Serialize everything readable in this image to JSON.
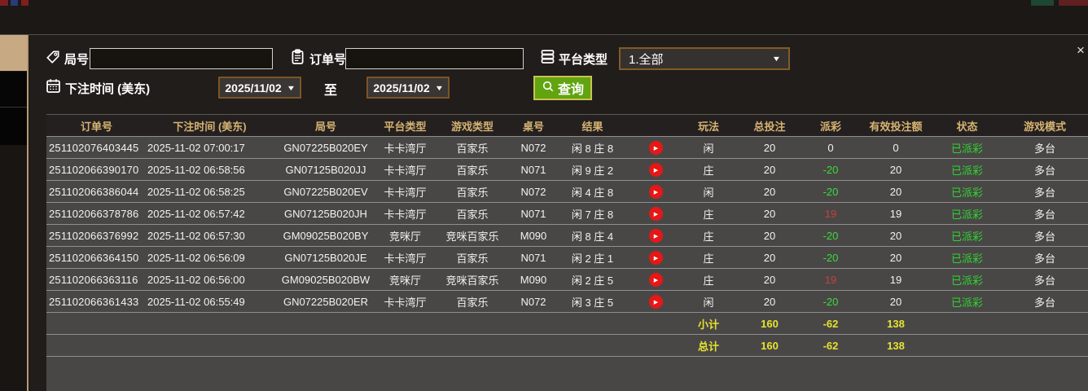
{
  "window": {
    "close_icon": "×"
  },
  "filters": {
    "round_no": {
      "label": "局号",
      "value": ""
    },
    "order_no": {
      "label": "订单号",
      "value": ""
    },
    "platform_type": {
      "label": "平台类型",
      "selected": "1.全部",
      "arrow": "▼"
    },
    "bet_time": {
      "label": "下注时间 (美东)",
      "from": "2025/11/02",
      "to_separator": "至",
      "to": "2025/11/02",
      "arrow": "▼"
    },
    "query_button": {
      "label": "查询"
    }
  },
  "table": {
    "headers": [
      "订单号",
      "下注时间 (美东)",
      "局号",
      "平台类型",
      "游戏类型",
      "桌号",
      "结果",
      "",
      "玩法",
      "总投注",
      "派彩",
      "有效投注额",
      "状态",
      "游戏模式"
    ],
    "rows": [
      {
        "order_id": "251102076403445",
        "bet_time": "2025-11-02 07:00:17",
        "round_id": "GN07225B020EY",
        "platform": "卡卡湾厅",
        "game_type": "百家乐",
        "table_no": "N072",
        "result": "闲 8 庄 8",
        "bet_on": "闲",
        "total_bet": "20",
        "payout": "0",
        "payout_class": "zero",
        "valid_bet": "0",
        "status": "已派彩",
        "mode": "多台"
      },
      {
        "order_id": "251102066390170",
        "bet_time": "2025-11-02 06:58:56",
        "round_id": "GN07125B020JJ",
        "platform": "卡卡湾厅",
        "game_type": "百家乐",
        "table_no": "N071",
        "result": "闲 9 庄 2",
        "bet_on": "庄",
        "total_bet": "20",
        "payout": "-20",
        "payout_class": "neg",
        "valid_bet": "20",
        "status": "已派彩",
        "mode": "多台"
      },
      {
        "order_id": "251102066386044",
        "bet_time": "2025-11-02 06:58:25",
        "round_id": "GN07225B020EV",
        "platform": "卡卡湾厅",
        "game_type": "百家乐",
        "table_no": "N072",
        "result": "闲 4 庄 8",
        "bet_on": "闲",
        "total_bet": "20",
        "payout": "-20",
        "payout_class": "neg",
        "valid_bet": "20",
        "status": "已派彩",
        "mode": "多台"
      },
      {
        "order_id": "251102066378786",
        "bet_time": "2025-11-02 06:57:42",
        "round_id": "GN07125B020JH",
        "platform": "卡卡湾厅",
        "game_type": "百家乐",
        "table_no": "N071",
        "result": "闲 7 庄 8",
        "bet_on": "庄",
        "total_bet": "20",
        "payout": "19",
        "payout_class": "pos",
        "valid_bet": "19",
        "status": "已派彩",
        "mode": "多台"
      },
      {
        "order_id": "251102066376992",
        "bet_time": "2025-11-02 06:57:30",
        "round_id": "GM09025B020BY",
        "platform": "竞咪厅",
        "game_type": "竞咪百家乐",
        "table_no": "M090",
        "result": "闲 8 庄 4",
        "bet_on": "庄",
        "total_bet": "20",
        "payout": "-20",
        "payout_class": "neg",
        "valid_bet": "20",
        "status": "已派彩",
        "mode": "多台"
      },
      {
        "order_id": "251102066364150",
        "bet_time": "2025-11-02 06:56:09",
        "round_id": "GN07125B020JE",
        "platform": "卡卡湾厅",
        "game_type": "百家乐",
        "table_no": "N071",
        "result": "闲 2 庄 1",
        "bet_on": "庄",
        "total_bet": "20",
        "payout": "-20",
        "payout_class": "neg",
        "valid_bet": "20",
        "status": "已派彩",
        "mode": "多台"
      },
      {
        "order_id": "251102066363116",
        "bet_time": "2025-11-02 06:56:00",
        "round_id": "GM09025B020BW",
        "platform": "竞咪厅",
        "game_type": "竞咪百家乐",
        "table_no": "M090",
        "result": "闲 2 庄 5",
        "bet_on": "庄",
        "total_bet": "20",
        "payout": "19",
        "payout_class": "pos",
        "valid_bet": "19",
        "status": "已派彩",
        "mode": "多台"
      },
      {
        "order_id": "251102066361433",
        "bet_time": "2025-11-02 06:55:49",
        "round_id": "GN07225B020ER",
        "platform": "卡卡湾厅",
        "game_type": "百家乐",
        "table_no": "N072",
        "result": "闲 3 庄 5",
        "bet_on": "闲",
        "total_bet": "20",
        "payout": "-20",
        "payout_class": "neg",
        "valid_bet": "20",
        "status": "已派彩",
        "mode": "多台"
      }
    ],
    "subtotal": {
      "label": "小计",
      "total_bet": "160",
      "payout": "-62",
      "valid_bet": "138"
    },
    "grand_total": {
      "label": "总计",
      "total_bet": "160",
      "payout": "-62",
      "valid_bet": "138"
    }
  },
  "colors": {
    "header_gold": "#d6b372",
    "negative_green": "#3bdc3b",
    "positive_red": "#bf4343",
    "status_green": "#2fd32f",
    "totals_yellow": "#e5e32e",
    "query_green": "#61a410",
    "row_grey": "#494746",
    "panel_dark": "#211d1b"
  }
}
